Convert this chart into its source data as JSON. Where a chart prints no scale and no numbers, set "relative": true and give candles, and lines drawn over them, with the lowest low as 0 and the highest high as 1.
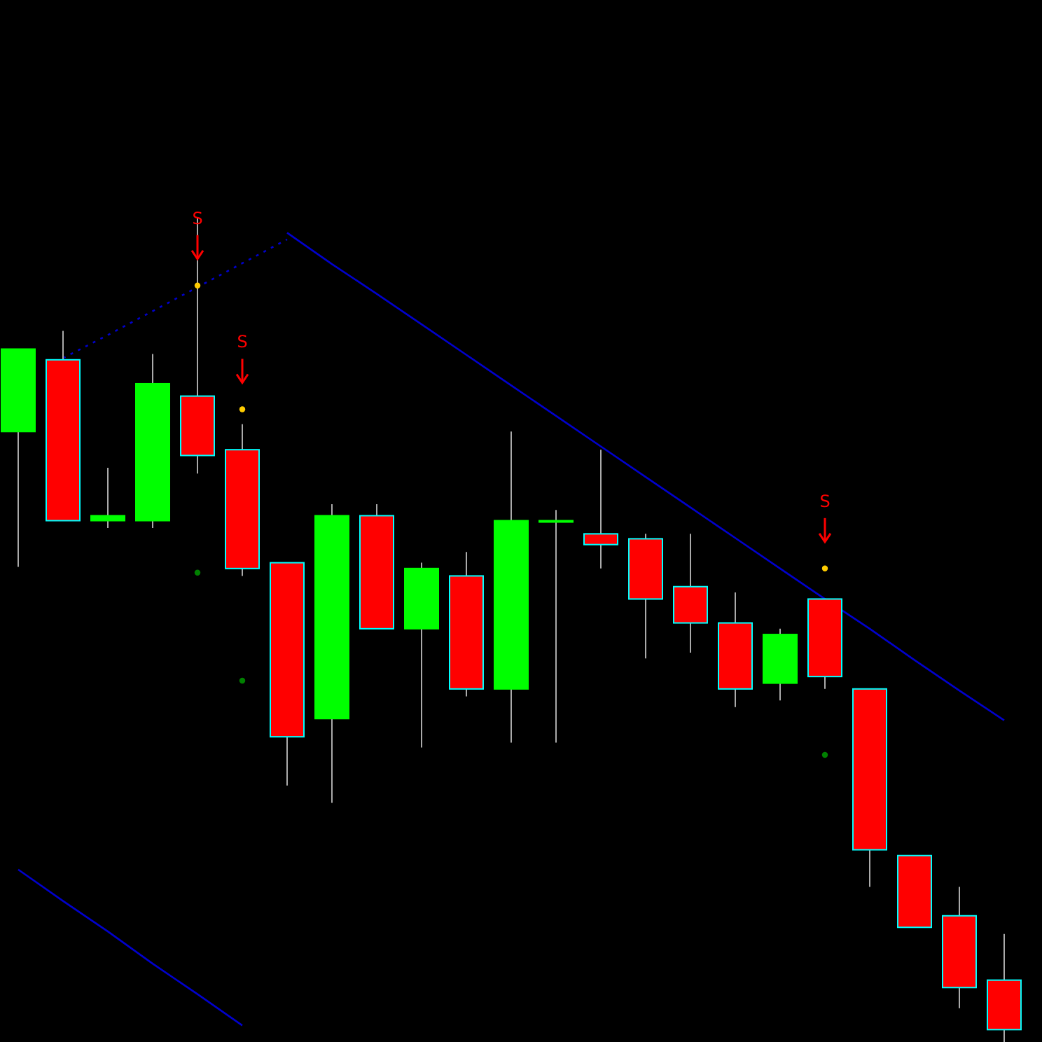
{
  "chart_data": {
    "type": "candlestick",
    "relative": true,
    "grid": false,
    "categories": [
      null,
      null,
      null,
      null,
      null,
      null,
      null,
      null,
      null,
      null,
      null,
      null,
      null,
      null,
      null,
      null,
      null,
      null,
      null,
      null,
      null,
      null,
      null
    ],
    "ohlc": [
      [
        0.74,
        0.84,
        0.576,
        0.84
      ],
      [
        0.827,
        0.862,
        0.632,
        0.632
      ],
      [
        0.632,
        0.696,
        0.623,
        0.638
      ],
      [
        0.632,
        0.834,
        0.623,
        0.798
      ],
      [
        0.783,
        1,
        0.689,
        0.711
      ],
      [
        0.718,
        0.749,
        0.565,
        0.574
      ],
      [
        0.581,
        0.581,
        0.311,
        0.37
      ],
      [
        0.392,
        0.652,
        0.29,
        0.638
      ],
      [
        0.638,
        0.652,
        0.501,
        0.501
      ],
      [
        0.501,
        0.581,
        0.357,
        0.574
      ],
      [
        0.565,
        0.594,
        0.419,
        0.428
      ],
      [
        0.428,
        0.74,
        0.363,
        0.632
      ],
      [
        0.632,
        0.645,
        0.363,
        0.632
      ],
      [
        0.616,
        0.718,
        0.574,
        0.603
      ],
      [
        0.61,
        0.616,
        0.465,
        0.537
      ],
      [
        0.552,
        0.616,
        0.472,
        0.508
      ],
      [
        0.508,
        0.545,
        0.406,
        0.428
      ],
      [
        0.435,
        0.501,
        0.414,
        0.494
      ],
      [
        0.537,
        0.537,
        0.428,
        0.443
      ],
      [
        0.428,
        0.428,
        0.188,
        0.233
      ],
      [
        0.226,
        0.226,
        0.139,
        0.139
      ],
      [
        0.153,
        0.188,
        0.041,
        0.066
      ],
      [
        0.075,
        0.131,
        0,
        0.015
      ]
    ],
    "colors": [
      "#00ff00",
      "#ff0000",
      "#00ff00",
      "#00ff00",
      "#ff0000",
      "#ff0000",
      "#ff0000",
      "#00ff00",
      "#ff0000",
      "#00ff00",
      "#ff0000",
      "#00ff00",
      "#00ff00",
      "#ff0000",
      "#ff0000",
      "#ff0000",
      "#ff0000",
      "#00ff00",
      "#ff0000",
      "#ff0000",
      "#ff0000",
      "#ff0000",
      "#ff0000"
    ],
    "series": [
      {
        "type": "line",
        "color": "#0000cc",
        "line_style": "solid",
        "values": [
          null,
          null,
          null,
          null,
          null,
          null,
          0.981,
          0.943,
          0.907,
          0.87,
          0.833,
          0.796,
          0.759,
          0.722,
          0.685,
          0.648,
          0.611,
          0.574,
          0.537,
          0.501,
          0.463,
          0.426,
          0.39
        ]
      },
      {
        "type": "line",
        "color": "#0000cc",
        "line_style": "solid",
        "values": [
          0.209,
          0.171,
          0.134,
          0.095,
          0.058,
          0.02,
          null,
          null,
          null,
          null,
          null,
          null,
          null,
          null,
          null,
          null,
          null,
          null,
          null,
          null,
          null,
          null,
          null
        ]
      },
      {
        "type": "line",
        "color": "#0000cc",
        "line_style": "dotted",
        "values": [
          null,
          0.829,
          0.857,
          0.886,
          0.915,
          0.944,
          0.973,
          null,
          null,
          null,
          null,
          null,
          null,
          null,
          null,
          null,
          null,
          null,
          null,
          null,
          null,
          null,
          null
        ]
      },
      {
        "type": "scatter",
        "color": "#ffcc00",
        "marker": "circle",
        "values": [
          null,
          null,
          null,
          null,
          0.917,
          0.767,
          null,
          null,
          null,
          null,
          null,
          null,
          null,
          null,
          null,
          null,
          null,
          null,
          0.574,
          null,
          null,
          null,
          null
        ]
      },
      {
        "type": "scatter",
        "color": "#008000",
        "marker": "circle",
        "values": [
          null,
          null,
          null,
          null,
          0.569,
          0.438,
          null,
          null,
          null,
          null,
          null,
          null,
          null,
          null,
          null,
          null,
          null,
          null,
          0.348,
          null,
          null,
          null,
          null
        ]
      }
    ],
    "annotations": [
      "S",
      "S",
      "S"
    ]
  }
}
